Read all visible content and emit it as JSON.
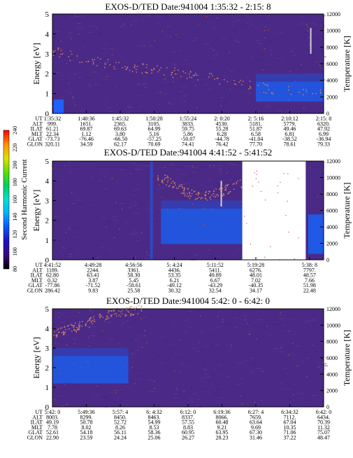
{
  "colors": {
    "background": "#ffffff",
    "spectrogram_base": "#4a2a86",
    "spectrogram_bright": "#1f59e6",
    "temperature_dots": "#e08a5a",
    "colorbar_stops": [
      "#000000",
      "#3a0a7a",
      "#2010c0",
      "#0a54ff",
      "#00b0ff",
      "#00e0d0",
      "#00d060",
      "#60e000",
      "#e0e000",
      "#ff9000",
      "#ff0000"
    ]
  },
  "colorbar": {
    "label": "Second Harmonic Current",
    "tick_labels": [
      "80",
      "100",
      "120",
      "140",
      "160",
      "180",
      "200",
      "220",
      "240"
    ]
  },
  "chart_data": [
    {
      "type": "heatmap",
      "title": "EXOS-D/TED   Date:941004   1:35:32 - 2:15: 8",
      "ylabel": "Energy [eV]",
      "y2label": "Temperature [K]",
      "ylim": [
        0,
        5
      ],
      "y2lim": [
        0,
        12000
      ],
      "yticks": [
        "0",
        "1",
        "2",
        "3",
        "4",
        "5"
      ],
      "y2ticks": [
        "0",
        "2000",
        "4000",
        "6000",
        "8000",
        "10000",
        "12000"
      ],
      "orbit_rows": [
        "UT",
        "ALT",
        "ILAT",
        "MLT",
        "GLAT",
        "GLON"
      ],
      "orbit_columns": [
        [
          "1:35:32",
          "999.",
          "61.21",
          "22.34",
          "-73.73",
          "320.11"
        ],
        [
          "1:40:36",
          "1651.",
          "69.87",
          "1.12",
          "-76.46",
          "34.59"
        ],
        [
          "1:45:32",
          "2365.",
          "69.63",
          "3.80",
          "-66.50",
          "62.17"
        ],
        [
          "1:50:28",
          "3105.",
          "64.99",
          "5.16",
          "-57.25",
          "70.69"
        ],
        [
          "1:55:24",
          "3833.",
          "59.75",
          "5.86",
          "-50.07",
          "74.41"
        ],
        [
          "2: 0:20",
          "4530.",
          "55.28",
          "6.28",
          "-44.78",
          "76.42"
        ],
        [
          "2: 5:16",
          "5181.",
          "51.87",
          "6.58",
          "-41.04",
          "77.70"
        ],
        [
          "2:10:12",
          "5779.",
          "49.46",
          "6.81",
          "-38.52",
          "78.61"
        ],
        [
          "2:15: 8",
          "6320.",
          "47.92",
          "6.99",
          "-36.94",
          "79.33"
        ]
      ],
      "bright_band_energy_eV": [
        0.6,
        1.6
      ],
      "temperature_K_trend": [
        7500,
        6000,
        5200,
        4200,
        3000,
        2500
      ],
      "gap_fraction": null
    },
    {
      "type": "heatmap",
      "title": "EXOS-D/TED   Date:941004   4:41:52 - 5:41:52",
      "ylabel": "Energy [eV]",
      "y2label": "Temperature [K]",
      "ylim": [
        0,
        5
      ],
      "y2lim": [
        0,
        12000
      ],
      "yticks": [
        "0",
        "1",
        "2",
        "3",
        "4",
        "5"
      ],
      "y2ticks": [
        "0",
        "2000",
        "4000",
        "6000",
        "8000",
        "10000",
        "12000"
      ],
      "orbit_rows": [
        "UT",
        "ALT",
        "ILAT",
        "MLT",
        "GLAT",
        "GLON"
      ],
      "orbit_columns": [
        [
          "4:41:52",
          "1189.",
          "62.80",
          "0.32",
          "-77.86",
          "286.42"
        ],
        [
          "4:49:28",
          "2244.",
          "63.41",
          "3.87",
          "-71.52",
          "9.83"
        ],
        [
          "4:56:56",
          "3361.",
          "58.30",
          "5.45",
          "-58.61",
          "25.58"
        ],
        [
          "5: 4:24",
          "4436.",
          "53.35",
          "6.21",
          "-49.12",
          "30.32"
        ],
        [
          "5:11:52",
          "5411.",
          "49.89",
          "6.67",
          "-43.29",
          "32.54"
        ],
        [
          "5:19:28",
          "6276.",
          "48.01",
          "7.02",
          "-40.35",
          "34.17"
        ],
        [
          "5:38: 8",
          "7797.",
          "48.57",
          "7.66",
          "51.98",
          "22.48"
        ]
      ],
      "bright_band_energy_eV": [
        0.8,
        2.6
      ],
      "temperature_K_trend": [
        10500,
        9200,
        8000,
        7800,
        8500,
        9500
      ],
      "gap_fraction": [
        0.7,
        1.0
      ]
    },
    {
      "type": "heatmap",
      "title": "EXOS-D/TED   Date:941004   5:42: 0 - 6:42: 0",
      "ylabel": "Energy [eV]",
      "y2label": "Temperature [K]",
      "ylim": [
        0,
        5
      ],
      "y2lim": [
        0,
        12000
      ],
      "yticks": [
        "0",
        "1",
        "2",
        "3",
        "4",
        "5"
      ],
      "y2ticks": [
        "0",
        "2000",
        "4000",
        "6000",
        "8000",
        "10000",
        "12000"
      ],
      "orbit_rows": [
        "UT",
        "ALT",
        "ILAT",
        "MLT",
        "GLAT",
        "GLON"
      ],
      "orbit_columns": [
        [
          "5:42: 0",
          "8003.",
          "49.19",
          "7.78",
          "52.61",
          "22.90"
        ],
        [
          "5:49:36",
          "8299.",
          "50.78",
          "8.02",
          "54.18",
          "23.59"
        ],
        [
          "5:57: 4",
          "8450.",
          "52.72",
          "8.26",
          "56.11",
          "24.24"
        ],
        [
          "6: 4:32",
          "8463.",
          "54.99",
          "8.53",
          "58.36",
          "25.06"
        ],
        [
          "6:12: 0",
          "8337.",
          "57.55",
          "8.83",
          "60.95",
          "26.27"
        ],
        [
          "6:19:36",
          "8066.",
          "60.48",
          "9.21",
          "63.95",
          "28.23"
        ],
        [
          "6:27: 4",
          "7659.",
          "63.64",
          "9.69",
          "67.30",
          "31.46"
        ],
        [
          "6:34:32",
          "7112.",
          "67.04",
          "10.35",
          "71.06",
          "37.22"
        ],
        [
          "6:42: 0",
          "6434.",
          "70.39",
          "11.32",
          "75.07",
          "48.47"
        ]
      ],
      "bright_band_energy_eV": [
        1.2,
        2.6
      ],
      "temperature_K_trend": [
        9000,
        10000,
        11500,
        12000
      ],
      "gap_fraction": null
    }
  ]
}
